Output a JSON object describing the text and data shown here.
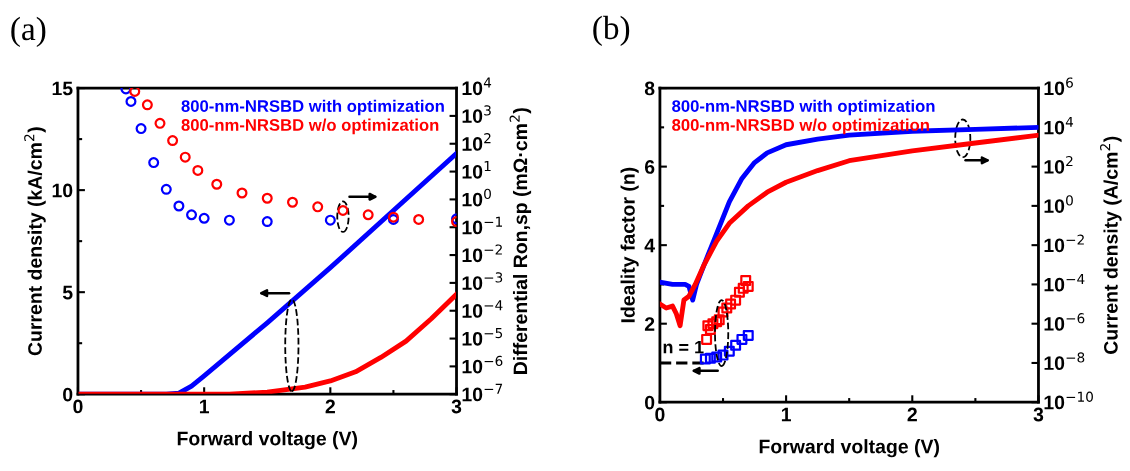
{
  "chart_data": [
    {
      "type": "line",
      "title": "(a)",
      "xlabel": "Forward voltage (V)",
      "ylabel": "Current density (kA/cm$^{2}$)",
      "y2label": "Differential Ron,sp (mΩ·cm$^{2}$)",
      "xlim": [
        0,
        3
      ],
      "xticks": [
        0,
        1,
        2,
        3
      ],
      "ylim": [
        0,
        15
      ],
      "yticks": [
        0,
        5,
        10,
        15
      ],
      "log": "y2",
      "y2lim": [
        1e-07,
        10000.0
      ],
      "y2ticks": [
        {
          "value": 1e-07,
          "label": "10$^{−7}$"
        },
        {
          "value": 1e-06,
          "label": "10$^{−6}$"
        },
        {
          "value": 1e-05,
          "label": "10$^{−5}$"
        },
        {
          "value": 0.0001,
          "label": "10$^{−4}$"
        },
        {
          "value": 0.001,
          "label": "10$^{−3}$"
        },
        {
          "value": 0.01,
          "label": "10$^{−2}$"
        },
        {
          "value": 0.1,
          "label": "10$^{−1}$"
        },
        {
          "value": 1,
          "label": "10$^{0}$"
        },
        {
          "value": 10,
          "label": "10$^{1}$"
        },
        {
          "value": 100,
          "label": "10$^{2}$"
        },
        {
          "value": 1000,
          "label": "10$^{3}$"
        },
        {
          "value": 10000,
          "label": "10$^{4}$"
        }
      ],
      "grid": false,
      "legend": "top right",
      "series": [
        {
          "name": "800-nm-NRSBD with optimization",
          "color": "#0000ff",
          "marker": "none",
          "x": [
            0,
            0.7,
            0.8,
            0.9,
            1.0,
            1.5,
            2.0,
            2.5,
            3.0
          ],
          "values": [
            0,
            0,
            0.05,
            0.4,
            0.9,
            3.5,
            6.2,
            9.0,
            11.8
          ]
        },
        {
          "name": "800-nm-NRSBD w/o optimization",
          "color": "#ff0000",
          "marker": "none",
          "x": [
            0,
            1.2,
            1.5,
            1.8,
            2.0,
            2.2,
            2.4,
            2.6,
            2.8,
            3.0
          ],
          "values": [
            0,
            0,
            0.1,
            0.35,
            0.65,
            1.1,
            1.8,
            2.6,
            3.7,
            4.9
          ]
        },
        {
          "type": "scatter",
          "axis": "y2",
          "color": "#0000ff",
          "marker": "circle",
          "x": [
            0.38,
            0.42,
            0.5,
            0.6,
            0.7,
            0.8,
            0.9,
            1.0,
            1.2,
            1.5,
            2.0,
            2.5,
            3.0
          ],
          "values": [
            9300,
            3300,
            350,
            21,
            2.3,
            0.58,
            0.28,
            0.21,
            0.18,
            0.16,
            0.18,
            0.19,
            0.2
          ]
        },
        {
          "type": "scatter",
          "axis": "y2",
          "color": "#ff0000",
          "marker": "circle",
          "x": [
            0.45,
            0.55,
            0.65,
            0.75,
            0.85,
            0.95,
            1.1,
            1.3,
            1.5,
            1.7,
            1.9,
            2.1,
            2.3,
            2.5,
            2.7,
            3.0
          ],
          "values": [
            7600,
            2500,
            540,
            130,
            33,
            11,
            3.5,
            1.7,
            1.1,
            0.79,
            0.54,
            0.4,
            0.28,
            0.23,
            0.19,
            0.16
          ]
        }
      ]
    },
    {
      "type": "line",
      "title": "(b)",
      "xlabel": "Forward voltage (V)",
      "ylabel": "Ideality factor (n)",
      "y2label": "Current density (A/cm$^{2}$)",
      "xlim": [
        0,
        3
      ],
      "xticks": [
        0,
        1,
        2,
        3
      ],
      "ylim": [
        0,
        8
      ],
      "yticks": [
        0,
        2,
        4,
        6,
        8
      ],
      "log": "y2",
      "y2lim": [
        1e-10,
        1000000.0
      ],
      "y2ticks": [
        {
          "value": 1e-10,
          "label": "10$^{−10}$"
        },
        {
          "value": 1e-08,
          "label": "10$^{−8}$"
        },
        {
          "value": 1e-06,
          "label": "10$^{−6}$"
        },
        {
          "value": 0.0001,
          "label": "10$^{−4}$"
        },
        {
          "value": 0.01,
          "label": "10$^{−2}$"
        },
        {
          "value": 1,
          "label": "10$^{0}$"
        },
        {
          "value": 100,
          "label": "10$^{2}$"
        },
        {
          "value": 10000,
          "label": "10$^{4}$"
        },
        {
          "value": 1000000,
          "label": "10$^{6}$"
        }
      ],
      "grid": false,
      "legend": "top left",
      "ref_lines": [
        {
          "axis": "y",
          "value": 1,
          "label": "n = 1",
          "line_style": "dashed",
          "color": "#000000"
        }
      ],
      "series": [
        {
          "name": "800-nm-NRSBD with optimization",
          "axis": "y2",
          "color": "#0000ff",
          "marker": "none",
          "x": [
            0,
            0.1,
            0.2,
            0.23,
            0.26,
            0.29,
            0.35,
            0.45,
            0.55,
            0.65,
            0.75,
            0.85,
            1.0,
            1.25,
            1.5,
            2.0,
            2.5,
            3.0
          ],
          "values": [
            0.00013,
            0.0001,
            0.0001,
            7.9e-05,
            1.6e-05,
            0.0001,
            0.001,
            0.04,
            1.6,
            25,
            160,
            500,
            1300,
            2500,
            4000,
            6300,
            7900,
            10000
          ]
        },
        {
          "name": "800-nm-NRSBD w/o optimization",
          "axis": "y2",
          "color": "#ff0000",
          "marker": "none",
          "x": [
            0,
            0.05,
            0.1,
            0.13,
            0.16,
            0.19,
            0.23,
            0.28,
            0.35,
            0.45,
            0.55,
            0.7,
            0.85,
            1.0,
            1.25,
            1.5,
            2.0,
            2.5,
            3.0
          ],
          "values": [
            1e-05,
            6.3e-06,
            7.9e-06,
            3.2e-06,
            7.9e-07,
            1.6e-05,
            2.5e-05,
            0.0001,
            0.001,
            0.016,
            0.13,
            1,
            5,
            16,
            63,
            200,
            630,
            1600,
            4000
          ]
        },
        {
          "type": "scatter",
          "color": "#0000ff",
          "marker": "square",
          "x": [
            0.36,
            0.4,
            0.45,
            0.5,
            0.55,
            0.6,
            0.65,
            0.7
          ],
          "values": [
            1.1,
            1.12,
            1.15,
            1.2,
            1.3,
            1.45,
            1.6,
            1.7
          ]
        },
        {
          "type": "scatter",
          "color": "#ff0000",
          "marker": "square",
          "x": [
            0.37,
            0.38,
            0.4,
            0.42,
            0.45,
            0.47,
            0.5,
            0.53,
            0.56,
            0.6,
            0.63,
            0.66,
            0.68,
            0.7
          ],
          "values": [
            1.6,
            1.95,
            1.85,
            2.0,
            2.05,
            2.1,
            2.3,
            2.4,
            2.5,
            2.6,
            2.8,
            2.9,
            3.1,
            2.95
          ]
        }
      ]
    }
  ]
}
